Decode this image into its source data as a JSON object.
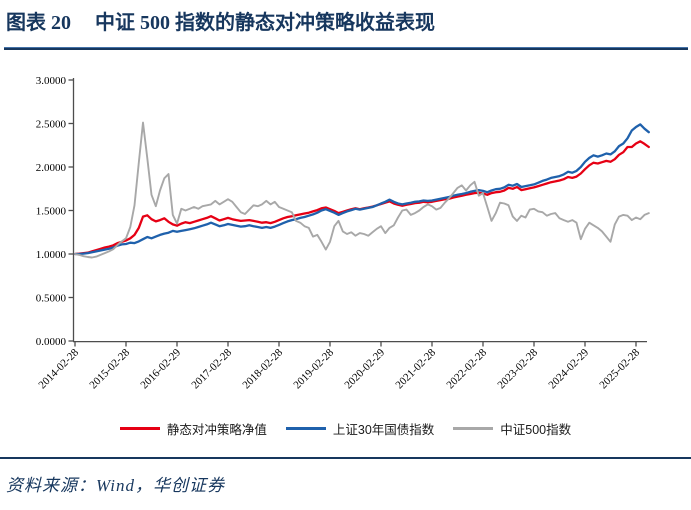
{
  "header": {
    "figure_label": "图表 20",
    "title": "中证 500 指数的静态对冲策略收益表现"
  },
  "footer": {
    "source": "资料来源：Wind，华创证券"
  },
  "colors": {
    "accent_navy": "#17375E",
    "series_red": "#E60014",
    "series_blue": "#1F61AC",
    "series_gray": "#A8A8A8",
    "axis": "#4d4d4d",
    "tick_text": "#000000"
  },
  "chart_data": {
    "type": "line",
    "title": "",
    "xlabel": "",
    "ylabel": "",
    "ylim": [
      0,
      3
    ],
    "y_tick_step": 0.5,
    "grid": false,
    "legend_position": "bottom",
    "y_tick_labels": [
      "0.0000",
      "0.5000",
      "1.0000",
      "1.5000",
      "2.0000",
      "2.5000",
      "3.0000"
    ],
    "x_tick_labels": [
      "2014-02-28",
      "2015-02-28",
      "2016-02-29",
      "2017-02-28",
      "2018-02-28",
      "2019-02-28",
      "2020-02-29",
      "2021-02-28",
      "2022-02-28",
      "2023-02-28",
      "2024-02-29",
      "2025-02-28"
    ],
    "x_tick_every": 12,
    "n_points": 136,
    "x_unit": "month",
    "series": [
      {
        "name": "静态对冲策略净值",
        "color": "#E60014",
        "width": 2.3,
        "values": [
          1.0,
          1.005,
          1.01,
          1.015,
          1.03,
          1.045,
          1.06,
          1.075,
          1.085,
          1.1,
          1.125,
          1.14,
          1.155,
          1.18,
          1.22,
          1.3,
          1.43,
          1.445,
          1.4,
          1.375,
          1.39,
          1.41,
          1.37,
          1.34,
          1.325,
          1.35,
          1.365,
          1.355,
          1.37,
          1.385,
          1.4,
          1.415,
          1.435,
          1.41,
          1.385,
          1.4,
          1.415,
          1.4,
          1.39,
          1.38,
          1.385,
          1.39,
          1.38,
          1.37,
          1.36,
          1.365,
          1.355,
          1.37,
          1.39,
          1.41,
          1.425,
          1.435,
          1.445,
          1.455,
          1.465,
          1.475,
          1.49,
          1.505,
          1.525,
          1.535,
          1.515,
          1.495,
          1.47,
          1.485,
          1.5,
          1.515,
          1.525,
          1.515,
          1.525,
          1.535,
          1.545,
          1.56,
          1.575,
          1.59,
          1.605,
          1.58,
          1.565,
          1.555,
          1.565,
          1.575,
          1.585,
          1.59,
          1.6,
          1.595,
          1.6,
          1.61,
          1.62,
          1.63,
          1.635,
          1.65,
          1.66,
          1.67,
          1.68,
          1.69,
          1.7,
          1.705,
          1.695,
          1.68,
          1.7,
          1.71,
          1.715,
          1.73,
          1.76,
          1.75,
          1.77,
          1.735,
          1.745,
          1.755,
          1.765,
          1.78,
          1.795,
          1.81,
          1.825,
          1.835,
          1.845,
          1.86,
          1.885,
          1.875,
          1.89,
          1.925,
          1.975,
          2.02,
          2.05,
          2.04,
          2.055,
          2.07,
          2.06,
          2.09,
          2.14,
          2.17,
          2.23,
          2.23,
          2.27,
          2.295,
          2.265,
          2.23
        ]
      },
      {
        "name": "上证30年国债指数",
        "color": "#1F61AC",
        "width": 2.3,
        "values": [
          1.0,
          1.0,
          1.005,
          1.01,
          1.02,
          1.03,
          1.04,
          1.05,
          1.06,
          1.075,
          1.095,
          1.11,
          1.115,
          1.13,
          1.125,
          1.145,
          1.17,
          1.195,
          1.18,
          1.2,
          1.22,
          1.235,
          1.245,
          1.265,
          1.255,
          1.265,
          1.275,
          1.285,
          1.295,
          1.31,
          1.325,
          1.34,
          1.36,
          1.34,
          1.32,
          1.33,
          1.345,
          1.335,
          1.325,
          1.315,
          1.32,
          1.33,
          1.32,
          1.31,
          1.3,
          1.31,
          1.3,
          1.315,
          1.335,
          1.355,
          1.375,
          1.39,
          1.4,
          1.415,
          1.425,
          1.44,
          1.455,
          1.475,
          1.5,
          1.515,
          1.495,
          1.475,
          1.45,
          1.47,
          1.49,
          1.505,
          1.52,
          1.51,
          1.52,
          1.53,
          1.54,
          1.56,
          1.58,
          1.6,
          1.625,
          1.6,
          1.58,
          1.57,
          1.58,
          1.59,
          1.6,
          1.605,
          1.615,
          1.61,
          1.615,
          1.625,
          1.635,
          1.645,
          1.655,
          1.67,
          1.68,
          1.69,
          1.7,
          1.715,
          1.725,
          1.735,
          1.725,
          1.71,
          1.73,
          1.745,
          1.75,
          1.765,
          1.795,
          1.785,
          1.805,
          1.77,
          1.78,
          1.79,
          1.8,
          1.82,
          1.84,
          1.855,
          1.875,
          1.885,
          1.895,
          1.915,
          1.945,
          1.935,
          1.955,
          2.0,
          2.06,
          2.105,
          2.135,
          2.12,
          2.135,
          2.155,
          2.145,
          2.18,
          2.24,
          2.27,
          2.33,
          2.42,
          2.46,
          2.49,
          2.44,
          2.4
        ]
      },
      {
        "name": "中证500指数",
        "color": "#A8A8A8",
        "width": 1.9,
        "values": [
          1.0,
          0.99,
          0.975,
          0.965,
          0.96,
          0.97,
          0.99,
          1.01,
          1.03,
          1.055,
          1.105,
          1.145,
          1.18,
          1.31,
          1.56,
          2.05,
          2.51,
          2.1,
          1.68,
          1.55,
          1.73,
          1.87,
          1.92,
          1.45,
          1.35,
          1.52,
          1.5,
          1.52,
          1.54,
          1.52,
          1.55,
          1.56,
          1.57,
          1.61,
          1.57,
          1.6,
          1.63,
          1.6,
          1.54,
          1.48,
          1.46,
          1.51,
          1.56,
          1.55,
          1.57,
          1.61,
          1.57,
          1.6,
          1.54,
          1.52,
          1.5,
          1.48,
          1.38,
          1.36,
          1.32,
          1.3,
          1.2,
          1.22,
          1.14,
          1.05,
          1.14,
          1.32,
          1.38,
          1.26,
          1.23,
          1.25,
          1.21,
          1.24,
          1.23,
          1.21,
          1.25,
          1.29,
          1.32,
          1.24,
          1.3,
          1.33,
          1.42,
          1.5,
          1.51,
          1.45,
          1.47,
          1.5,
          1.54,
          1.57,
          1.55,
          1.51,
          1.53,
          1.59,
          1.64,
          1.7,
          1.76,
          1.79,
          1.73,
          1.79,
          1.83,
          1.67,
          1.7,
          1.54,
          1.38,
          1.47,
          1.59,
          1.58,
          1.56,
          1.43,
          1.38,
          1.44,
          1.42,
          1.51,
          1.52,
          1.49,
          1.48,
          1.44,
          1.46,
          1.47,
          1.41,
          1.39,
          1.37,
          1.39,
          1.36,
          1.17,
          1.29,
          1.36,
          1.33,
          1.3,
          1.26,
          1.2,
          1.14,
          1.34,
          1.43,
          1.45,
          1.44,
          1.39,
          1.42,
          1.4,
          1.45,
          1.47
        ]
      }
    ]
  }
}
